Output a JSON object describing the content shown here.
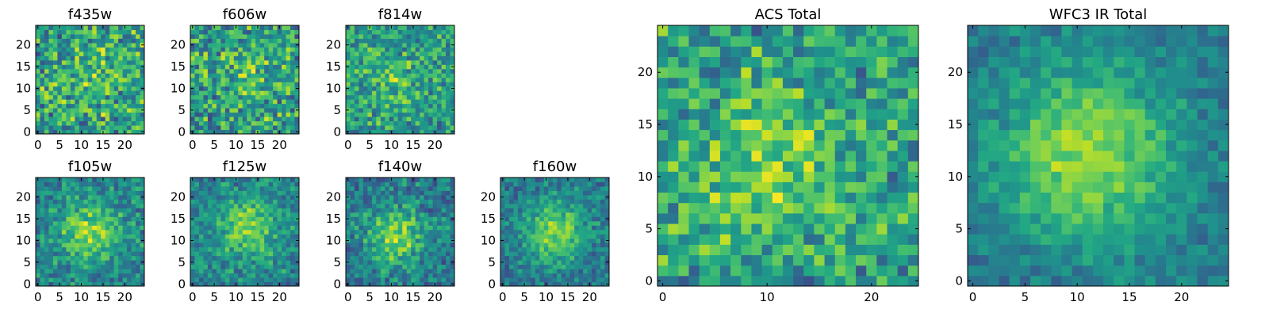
{
  "chart_data": [
    {
      "type": "heatmap",
      "title": "f435w",
      "grid": false,
      "xlim": [
        0,
        25
      ],
      "ylim": [
        0,
        25
      ],
      "xticks": [
        "0",
        "5",
        "10",
        "15",
        "20"
      ],
      "yticks": [
        "0",
        "5",
        "10",
        "15",
        "20"
      ],
      "colormap": "viridis",
      "center": [
        14,
        13
      ],
      "sigma": 8,
      "amp": 0.1,
      "noise": 0.55,
      "base": 0.55,
      "seed": 11
    },
    {
      "type": "heatmap",
      "title": "f606w",
      "grid": false,
      "xlim": [
        0,
        25
      ],
      "ylim": [
        0,
        25
      ],
      "xticks": [
        "0",
        "5",
        "10",
        "15",
        "20"
      ],
      "yticks": [
        "0",
        "5",
        "10",
        "15",
        "20"
      ],
      "colormap": "viridis",
      "center": [
        12,
        12
      ],
      "sigma": 6,
      "amp": 0.1,
      "noise": 0.55,
      "base": 0.55,
      "seed": 23
    },
    {
      "type": "heatmap",
      "title": "f814w",
      "grid": false,
      "xlim": [
        0,
        25
      ],
      "ylim": [
        0,
        25
      ],
      "xticks": [
        "0",
        "5",
        "10",
        "15",
        "20"
      ],
      "yticks": [
        "0",
        "5",
        "10",
        "15",
        "20"
      ],
      "colormap": "viridis",
      "center": [
        10,
        12
      ],
      "sigma": 4,
      "amp": 0.18,
      "noise": 0.45,
      "base": 0.55,
      "seed": 37
    },
    {
      "type": "heatmap",
      "title": "f105w",
      "grid": false,
      "xlim": [
        0,
        25
      ],
      "ylim": [
        0,
        25
      ],
      "xticks": [
        "0",
        "5",
        "10",
        "15",
        "20"
      ],
      "yticks": [
        "0",
        "5",
        "10",
        "15",
        "20"
      ],
      "colormap": "viridis",
      "center": [
        12,
        12
      ],
      "sigma": 5,
      "amp": 0.35,
      "noise": 0.35,
      "base": 0.45,
      "seed": 41
    },
    {
      "type": "heatmap",
      "title": "f125w",
      "grid": false,
      "xlim": [
        0,
        25
      ],
      "ylim": [
        0,
        25
      ],
      "xticks": [
        "0",
        "5",
        "10",
        "15",
        "20"
      ],
      "yticks": [
        "0",
        "5",
        "10",
        "15",
        "20"
      ],
      "colormap": "viridis",
      "center": [
        13,
        13
      ],
      "sigma": 5,
      "amp": 0.35,
      "noise": 0.35,
      "base": 0.45,
      "seed": 53
    },
    {
      "type": "heatmap",
      "title": "f140w",
      "grid": false,
      "xlim": [
        0,
        25
      ],
      "ylim": [
        0,
        25
      ],
      "xticks": [
        "0",
        "5",
        "10",
        "15",
        "20"
      ],
      "yticks": [
        "0",
        "5",
        "10",
        "15",
        "20"
      ],
      "colormap": "viridis",
      "center": [
        11,
        11
      ],
      "sigma": 4.5,
      "amp": 0.4,
      "noise": 0.35,
      "base": 0.42,
      "seed": 67
    },
    {
      "type": "heatmap",
      "title": "f160w",
      "grid": false,
      "xlim": [
        0,
        25
      ],
      "ylim": [
        0,
        25
      ],
      "xticks": [
        "0",
        "5",
        "10",
        "15",
        "20"
      ],
      "yticks": [
        "0",
        "5",
        "10",
        "15",
        "20"
      ],
      "colormap": "viridis",
      "center": [
        12,
        12
      ],
      "sigma": 5,
      "amp": 0.42,
      "noise": 0.3,
      "base": 0.4,
      "seed": 79
    },
    {
      "type": "heatmap",
      "title": "ACS Total",
      "grid": false,
      "xlim": [
        0,
        25
      ],
      "ylim": [
        0,
        25
      ],
      "xticks": [
        "0",
        "10",
        "20"
      ],
      "yticks": [
        "0",
        "5",
        "10",
        "15",
        "20"
      ],
      "colormap": "viridis",
      "center": [
        10,
        11
      ],
      "sigma": 5,
      "amp": 0.25,
      "noise": 0.45,
      "base": 0.55,
      "seed": 97
    },
    {
      "type": "heatmap",
      "title": "WFC3 IR Total",
      "grid": false,
      "xlim": [
        0,
        25
      ],
      "ylim": [
        0,
        25
      ],
      "xticks": [
        "0",
        "5",
        "10",
        "15",
        "20"
      ],
      "yticks": [
        "0",
        "5",
        "10",
        "15",
        "20"
      ],
      "colormap": "viridis",
      "center": [
        11,
        12
      ],
      "sigma": 6,
      "amp": 0.45,
      "noise": 0.22,
      "base": 0.4,
      "seed": 113
    }
  ]
}
